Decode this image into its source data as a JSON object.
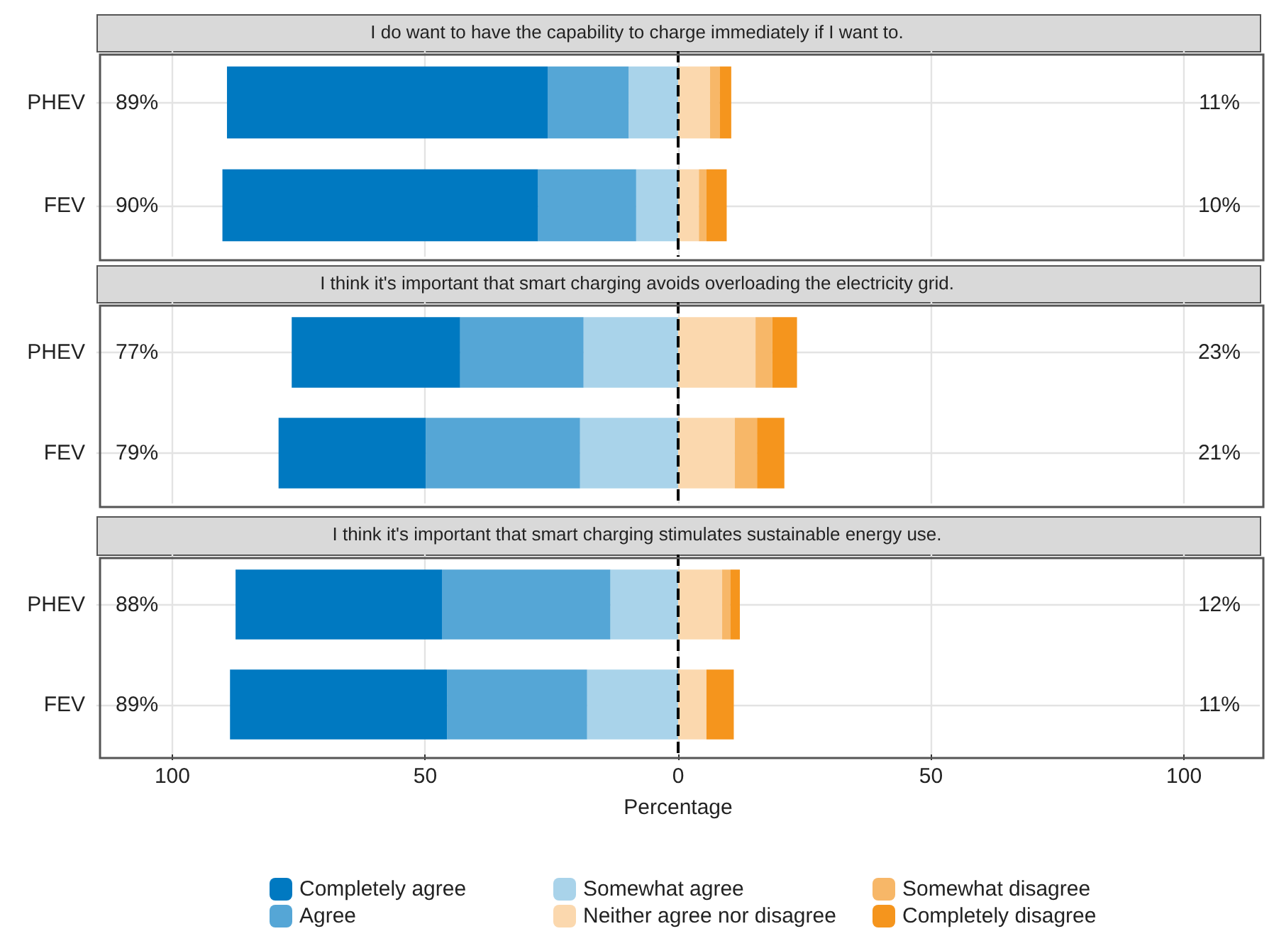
{
  "chart_data": [
    {
      "type": "bar",
      "orientation": "horizontal",
      "stacked": true,
      "title": "I do want to have the capability to charge immediately if I want to.",
      "categories": [
        "PHEV",
        "FEV"
      ],
      "series": [
        {
          "color": "#a9d3ea",
          "values": [
            -9.8,
            -8.3
          ]
        },
        {
          "color": "#55a6d6",
          "values": [
            -16.0,
            -19.4
          ]
        },
        {
          "color": "#0079c1",
          "values": [
            -63.4,
            -62.4
          ]
        },
        {
          "color": "#fbd8ae",
          "values": [
            6.3,
            4.1
          ]
        },
        {
          "color": "#f7b768",
          "values": [
            1.9,
            1.5
          ]
        },
        {
          "color": "#f5951d",
          "values": [
            2.3,
            4.0
          ]
        }
      ],
      "annotations": [
        "89%",
        "11%",
        "90%",
        "10%"
      ],
      "xlim": [
        -115,
        115
      ],
      "xticks": [
        -100,
        -50,
        0,
        50,
        100
      ],
      "ref_lines": [
        {
          "axis": "x",
          "value": 0,
          "color": "#000000",
          "line_style": "dashed"
        }
      ],
      "grid": true,
      "legend": false,
      "tick_labels": "y"
    },
    {
      "type": "bar",
      "orientation": "horizontal",
      "stacked": true,
      "title": "I think it's important that smart charging avoids overloading the electricity grid.",
      "categories": [
        "PHEV",
        "FEV"
      ],
      "series": [
        {
          "color": "#a9d3ea",
          "values": [
            -18.7,
            -19.4
          ]
        },
        {
          "color": "#55a6d6",
          "values": [
            -24.4,
            -30.5
          ]
        },
        {
          "color": "#0079c1",
          "values": [
            -33.3,
            -29.1
          ]
        },
        {
          "color": "#fbd8ae",
          "values": [
            15.3,
            11.2
          ]
        },
        {
          "color": "#f7b768",
          "values": [
            3.3,
            4.4
          ]
        },
        {
          "color": "#f5951d",
          "values": [
            4.9,
            5.4
          ]
        }
      ],
      "annotations": [
        "77%",
        "23%",
        "79%",
        "21%"
      ],
      "xlim": [
        -115,
        115
      ],
      "xticks": [
        -100,
        -50,
        0,
        50,
        100
      ],
      "ref_lines": [
        {
          "axis": "x",
          "value": 0,
          "color": "#000000",
          "line_style": "dashed"
        }
      ],
      "grid": true,
      "legend": false,
      "tick_labels": "y"
    },
    {
      "type": "bar",
      "orientation": "horizontal",
      "stacked": true,
      "title": "I think it's important that smart charging stimulates sustainable energy use.",
      "xlabel": "Percentage",
      "categories": [
        "PHEV",
        "FEV"
      ],
      "series": [
        {
          "name": "Somewhat agree",
          "color": "#a9d3ea",
          "values": [
            -13.4,
            -18.0
          ]
        },
        {
          "name": "Agree",
          "color": "#55a6d6",
          "values": [
            -33.3,
            -27.7
          ]
        },
        {
          "name": "Completely agree",
          "color": "#0079c1",
          "values": [
            -40.8,
            -42.9
          ]
        },
        {
          "name": "Neither agree nor disagree",
          "color": "#fbd8ae",
          "values": [
            8.7,
            5.6
          ]
        },
        {
          "name": "Somewhat disagree",
          "color": "#f7b768",
          "values": [
            1.6,
            0
          ]
        },
        {
          "name": "Completely disagree",
          "color": "#f5951d",
          "values": [
            1.9,
            5.4
          ]
        }
      ],
      "annotations": [
        "88%",
        "12%",
        "89%",
        "11%"
      ],
      "xlim": [
        -115,
        115
      ],
      "xticks": [
        {
          "value": -100,
          "label": "100"
        },
        {
          "value": -50,
          "label": "50"
        },
        0,
        50,
        100
      ],
      "ref_lines": [
        {
          "axis": "x",
          "value": 0,
          "color": "#000000",
          "line_style": "dashed"
        }
      ],
      "grid": true,
      "legend": "bottom"
    }
  ]
}
